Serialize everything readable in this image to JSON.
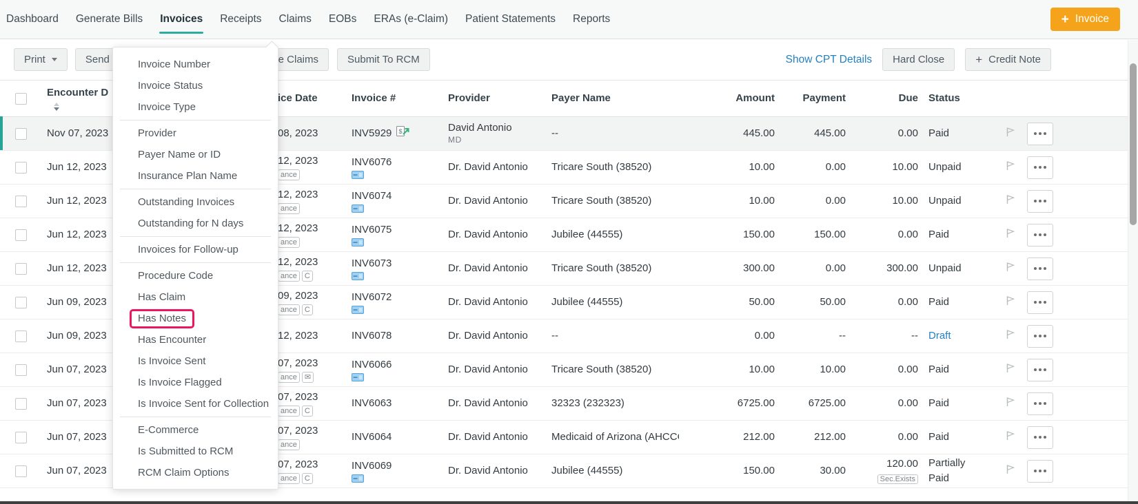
{
  "colors": {
    "teal_accent": "#2aada1",
    "orange_accent": "#f5a31b",
    "link_blue": "#2381c0",
    "highlight_pink": "#ec1660",
    "selected_row_bar": "#27a397"
  },
  "nav": {
    "items": [
      "Dashboard",
      "Generate Bills",
      "Invoices",
      "Receipts",
      "Claims",
      "EOBs",
      "ERAs (e-Claim)",
      "Patient Statements",
      "Reports"
    ],
    "active": "Invoices",
    "new_invoice_label": "Invoice",
    "new_invoice_plus": "+"
  },
  "toolbar": {
    "print_label": "Print",
    "send_fragment": "Send I",
    "create_claims_fragment": "te Claims",
    "submit_rcm_label": "Submit To RCM",
    "show_cpt_label": "Show CPT Details",
    "hard_close_label": "Hard Close",
    "credit_note_label": "Credit Note",
    "credit_note_plus": "+"
  },
  "filter_menu": {
    "items": [
      {
        "label": "Invoice Number"
      },
      {
        "label": "Invoice Status"
      },
      {
        "label": "Invoice Type",
        "divider_after": true
      },
      {
        "label": "Provider"
      },
      {
        "label": "Payer Name or ID"
      },
      {
        "label": "Insurance Plan Name",
        "divider_after": true
      },
      {
        "label": "Outstanding Invoices"
      },
      {
        "label": "Outstanding for N days",
        "divider_after": true
      },
      {
        "label": "Invoices for Follow-up",
        "divider_after": true
      },
      {
        "label": "Procedure Code"
      },
      {
        "label": "Has Claim"
      },
      {
        "label": "Has Notes",
        "highlighted": true
      },
      {
        "label": "Has Encounter"
      },
      {
        "label": "Is Invoice Sent"
      },
      {
        "label": "Is Invoice Flagged"
      },
      {
        "label": "Is Invoice Sent for Collection",
        "divider_after": true
      },
      {
        "label": "E-Commerce"
      },
      {
        "label": "Is Submitted to RCM"
      },
      {
        "label": "RCM Claim Options"
      }
    ]
  },
  "table": {
    "headers": {
      "encounter": "Encounter D",
      "invoice_date": "ice Date",
      "invoice_no": "Invoice #",
      "provider": "Provider",
      "payer": "Payer Name",
      "amount": "Amount",
      "payment": "Payment",
      "due": "Due",
      "status": "Status"
    },
    "rows": [
      {
        "encounter_date": "Nov 07, 2023",
        "invoice_date_fragment": "08, 2023",
        "date_badges": [],
        "invoice_number": "INV5929",
        "invoice_icon": "invoice-sent-icon",
        "provider": "David Antonio",
        "provider_sub": "MD",
        "payer_name": "--",
        "amount": "445.00",
        "payment": "445.00",
        "due": "0.00",
        "due_badge": "",
        "status": "Paid",
        "selected": true
      },
      {
        "encounter_date": "Jun 12, 2023",
        "invoice_date_fragment": "12, 2023",
        "date_badges": [
          "ance"
        ],
        "invoice_number": "INV6076",
        "invoice_icon": "payment-card-icon",
        "provider": "Dr. David Antonio",
        "provider_sub": "",
        "payer_name": "Tricare South (38520)",
        "amount": "10.00",
        "payment": "0.00",
        "due": "10.00",
        "due_badge": "",
        "status": "Unpaid",
        "selected": false
      },
      {
        "encounter_date": "Jun 12, 2023",
        "invoice_date_fragment": "12, 2023",
        "date_badges": [
          "ance"
        ],
        "invoice_number": "INV6074",
        "invoice_icon": "payment-card-icon",
        "provider": "Dr. David Antonio",
        "provider_sub": "",
        "payer_name": "Tricare South (38520)",
        "amount": "10.00",
        "payment": "0.00",
        "due": "10.00",
        "due_badge": "",
        "status": "Unpaid",
        "selected": false
      },
      {
        "encounter_date": "Jun 12, 2023",
        "invoice_date_fragment": "12, 2023",
        "date_badges": [
          "ance"
        ],
        "invoice_number": "INV6075",
        "invoice_icon": "payment-card-icon",
        "provider": "Dr. David Antonio",
        "provider_sub": "",
        "payer_name": "Jubilee (44555)",
        "amount": "150.00",
        "payment": "150.00",
        "due": "0.00",
        "due_badge": "",
        "status": "Paid",
        "selected": false
      },
      {
        "encounter_date": "Jun 12, 2023",
        "invoice_date_fragment": "12, 2023",
        "date_badges": [
          "ance",
          "C"
        ],
        "invoice_number": "INV6073",
        "invoice_icon": "payment-card-icon",
        "provider": "Dr. David Antonio",
        "provider_sub": "",
        "payer_name": "Tricare South (38520)",
        "amount": "300.00",
        "payment": "0.00",
        "due": "300.00",
        "due_badge": "",
        "status": "Unpaid",
        "selected": false
      },
      {
        "encounter_date": "Jun 09, 2023",
        "invoice_date_fragment": "09, 2023",
        "date_badges": [
          "ance",
          "C"
        ],
        "invoice_number": "INV6072",
        "invoice_icon": "payment-card-icon",
        "provider": "Dr. David Antonio",
        "provider_sub": "",
        "payer_name": "Jubilee (44555)",
        "amount": "50.00",
        "payment": "50.00",
        "due": "0.00",
        "due_badge": "",
        "status": "Paid",
        "selected": false
      },
      {
        "encounter_date": "Jun 09, 2023",
        "invoice_date_fragment": "12, 2023",
        "date_badges": [],
        "invoice_number": "INV6078",
        "invoice_icon": "",
        "provider": "Dr. David Antonio",
        "provider_sub": "",
        "payer_name": "--",
        "amount": "0.00",
        "payment": "--",
        "due": "--",
        "due_badge": "",
        "status": "Draft",
        "selected": false
      },
      {
        "encounter_date": "Jun 07, 2023",
        "invoice_date_fragment": "07, 2023",
        "date_badges": [
          "ance",
          "envelope-icon"
        ],
        "invoice_number": "INV6066",
        "invoice_icon": "payment-card-icon",
        "provider": "Dr. David Antonio",
        "provider_sub": "",
        "payer_name": "Tricare South (38520)",
        "amount": "10.00",
        "payment": "10.00",
        "due": "0.00",
        "due_badge": "",
        "status": "Paid",
        "selected": false
      },
      {
        "encounter_date": "Jun 07, 2023",
        "invoice_date_fragment": "07, 2023",
        "date_badges": [
          "ance",
          "C"
        ],
        "invoice_number": "INV6063",
        "invoice_icon": "",
        "provider": "Dr. David Antonio",
        "provider_sub": "",
        "payer_name": "32323 (232323)",
        "amount": "6725.00",
        "payment": "6725.00",
        "due": "0.00",
        "due_badge": "",
        "status": "Paid",
        "selected": false
      },
      {
        "encounter_date": "Jun 07, 2023",
        "invoice_date_fragment": "07, 2023",
        "date_badges": [
          "ance"
        ],
        "invoice_number": "INV6064",
        "invoice_icon": "",
        "provider": "Dr. David Antonio",
        "provider_sub": "",
        "payer_name": "Medicaid of Arizona (AHCCCS...",
        "amount": "212.00",
        "payment": "212.00",
        "due": "0.00",
        "due_badge": "",
        "status": "Paid",
        "selected": false
      },
      {
        "encounter_date": "Jun 07, 2023",
        "invoice_date_fragment": "07, 2023",
        "date_badges": [
          "ance",
          "C"
        ],
        "invoice_number": "INV6069",
        "invoice_icon": "payment-card-icon",
        "provider": "Dr. David Antonio",
        "provider_sub": "",
        "payer_name": "Jubilee (44555)",
        "amount": "150.00",
        "payment": "30.00",
        "due": "120.00",
        "due_badge": "Sec.Exists",
        "status": "Partially Paid",
        "selected": false
      }
    ]
  }
}
